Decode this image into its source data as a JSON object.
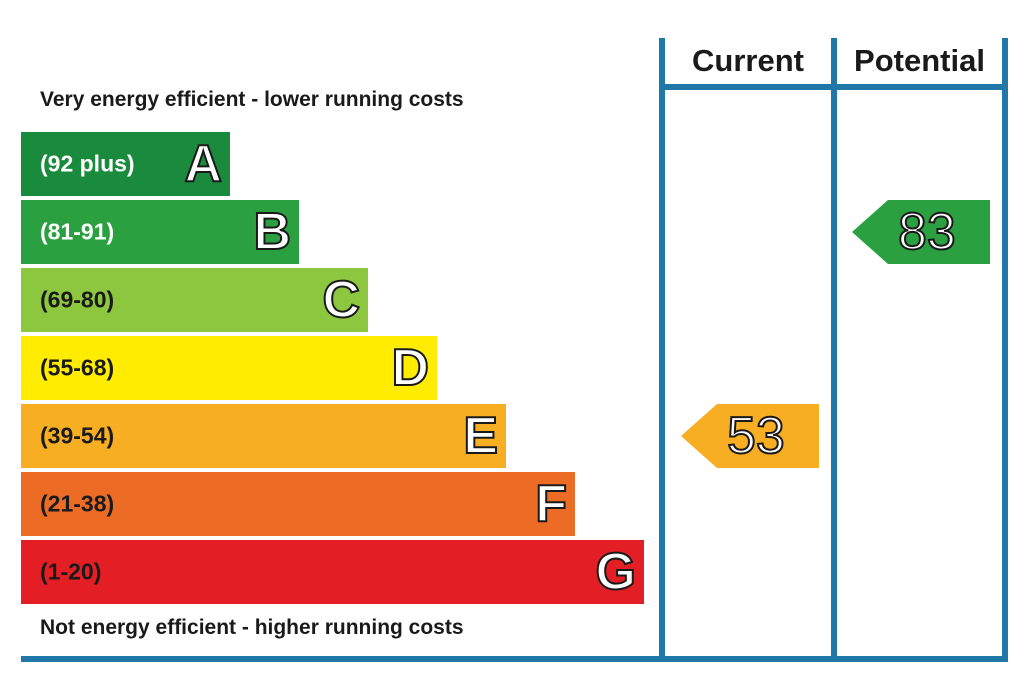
{
  "chart_data": {
    "type": "bar",
    "top_caption": "Very energy efficient - lower running costs",
    "bottom_caption": "Not energy efficient - higher running costs",
    "bands": [
      {
        "letter": "A",
        "range": "(92 plus)",
        "min": 92,
        "max": 100,
        "color": "#1a8a3c",
        "range_color": "#ffffff"
      },
      {
        "letter": "B",
        "range": "(81-91)",
        "min": 81,
        "max": 91,
        "color": "#2aa041",
        "range_color": "#ffffff"
      },
      {
        "letter": "C",
        "range": "(69-80)",
        "min": 69,
        "max": 80,
        "color": "#8dc63f",
        "range_color": "#1a1a1a"
      },
      {
        "letter": "D",
        "range": "(55-68)",
        "min": 55,
        "max": 68,
        "color": "#ffec00",
        "range_color": "#1a1a1a"
      },
      {
        "letter": "E",
        "range": "(39-54)",
        "min": 39,
        "max": 54,
        "color": "#f7ae22",
        "range_color": "#1a1a1a"
      },
      {
        "letter": "F",
        "range": "(21-38)",
        "min": 21,
        "max": 38,
        "color": "#ec6b25",
        "range_color": "#1a1a1a"
      },
      {
        "letter": "G",
        "range": "(1-20)",
        "min": 1,
        "max": 20,
        "color": "#e31e24",
        "range_color": "#1a1a1a"
      }
    ],
    "columns": [
      {
        "key": "current",
        "label": "Current",
        "value": 53,
        "band": "E",
        "color": "#f7ae22"
      },
      {
        "key": "potential",
        "label": "Potential",
        "value": 83,
        "band": "B",
        "color": "#2aa041"
      }
    ],
    "border_color": "#1f78a8"
  }
}
